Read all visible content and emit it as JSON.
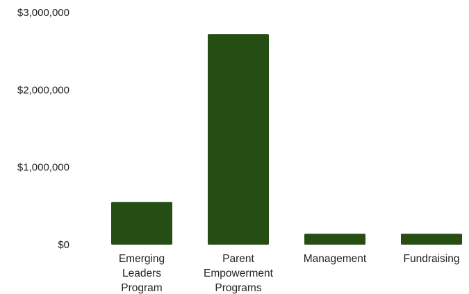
{
  "chart_data": {
    "type": "bar",
    "title": "",
    "xlabel": "",
    "ylabel": "",
    "categories": [
      [
        "Emerging",
        "Leaders",
        "Program"
      ],
      [
        "Parent",
        "Empowerment",
        "Programs"
      ],
      [
        "Management"
      ],
      [
        "Fundraising"
      ]
    ],
    "values": [
      550000,
      2720000,
      140000,
      140000
    ],
    "y_ticks": [
      0,
      1000000,
      2000000,
      3000000
    ],
    "y_tick_labels": [
      "$0",
      "$1,000,000",
      "$2,000,000",
      "$3,000,000"
    ],
    "ylim": [
      0,
      3000000
    ],
    "grid": false,
    "legend": "none",
    "bar_color": "#264d14"
  }
}
